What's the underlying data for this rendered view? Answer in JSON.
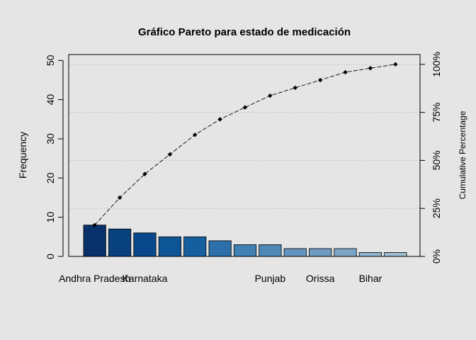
{
  "chart_data": {
    "type": "bar",
    "title": "Gráfico Pareto para estado de medicación",
    "xlabel": "",
    "ylabel": "Frequency",
    "ylabel_right": "Cumulative Percentage",
    "ylim": [
      0,
      51.5
    ],
    "yticks": [
      0,
      10,
      20,
      30,
      40,
      50
    ],
    "y2ticks": [
      "0%",
      "25%",
      "50%",
      "75%",
      "100%"
    ],
    "categories": [
      "Andhra Pradesh",
      "",
      "Karnataka",
      "",
      "",
      "",
      "",
      "Punjab",
      "",
      "Orissa",
      "",
      "Bihar",
      ""
    ],
    "series": [
      {
        "values": [
          8,
          7,
          6,
          5,
          5,
          4,
          3,
          3,
          2,
          2,
          2,
          1,
          1
        ]
      }
    ],
    "cumulative_percent": [
      16.3,
      30.6,
      42.9,
      53.1,
      63.3,
      71.4,
      77.6,
      83.7,
      87.8,
      91.8,
      95.9,
      98.0,
      100.0
    ],
    "bar_colors": [
      "#08306b",
      "#08417d",
      "#08488a",
      "#0e5595",
      "#155f9f",
      "#2d6fa8",
      "#4080b2",
      "#4f89b8",
      "#6394bd",
      "#6f9cc2",
      "#7ba4c6",
      "#8fb3cd",
      "#9ebdd3"
    ],
    "grid": true,
    "legend": "none"
  }
}
